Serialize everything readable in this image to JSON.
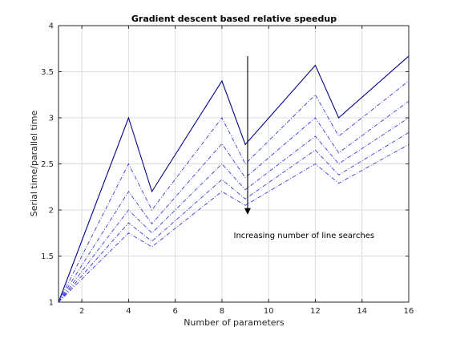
{
  "chart_data": {
    "type": "line",
    "title": "Gradient descent based relative speedup",
    "xlabel": "Number of parameters",
    "ylabel": "Serial time/parallel time",
    "xlim": [
      1,
      16
    ],
    "ylim": [
      1,
      4
    ],
    "xticks": [
      2,
      4,
      6,
      8,
      10,
      12,
      14,
      16
    ],
    "yticks": [
      1,
      1.5,
      2,
      2.5,
      3,
      3.5,
      4
    ],
    "grid": true,
    "x": [
      1,
      4,
      5,
      8,
      9,
      12,
      13,
      16
    ],
    "series": [
      {
        "values": [
          1,
          3.0,
          2.2,
          3.4,
          2.71,
          3.57,
          3.0,
          3.67
        ],
        "color": "#00008b",
        "dash": "solid"
      },
      {
        "values": [
          1,
          2.5,
          2.0,
          3.0,
          2.5,
          3.25,
          2.8,
          3.4
        ],
        "color": "#3b3bd9",
        "dash": "dashdot"
      },
      {
        "values": [
          1,
          2.2,
          1.85,
          2.72,
          2.35,
          3.0,
          2.62,
          3.18
        ],
        "color": "#3b3bd9",
        "dash": "dashdot"
      },
      {
        "values": [
          1,
          2.0,
          1.75,
          2.5,
          2.22,
          2.8,
          2.5,
          3.0
        ],
        "color": "#3b3bd9",
        "dash": "dashdot"
      },
      {
        "values": [
          1,
          1.86,
          1.66,
          2.33,
          2.12,
          2.65,
          2.38,
          2.84
        ],
        "color": "#3b3bd9",
        "dash": "dashdot"
      },
      {
        "values": [
          1,
          1.75,
          1.6,
          2.2,
          2.05,
          2.5,
          2.29,
          2.71
        ],
        "color": "#3b3bd9",
        "dash": "dashdot"
      }
    ],
    "annotation": {
      "text": "Increasing number of line searches",
      "arrow_x": 9.1,
      "arrow_y_start": 3.67,
      "arrow_y_end": 1.95,
      "text_x": 8.5,
      "text_y": 1.73
    }
  }
}
